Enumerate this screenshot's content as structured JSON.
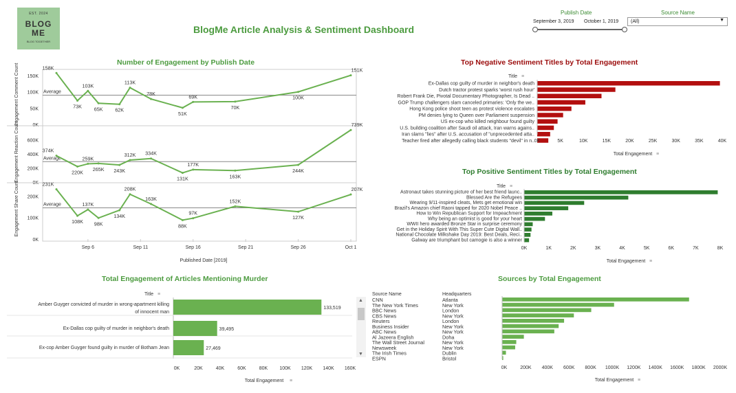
{
  "header": {
    "logo_top": "EST.   2024",
    "logo_name": "BLOG ME",
    "logo_tagline": "BLOG TOGETHER",
    "title": "BlogMe Article Analysis & Sentiment Dashboard"
  },
  "filters": {
    "publish_date_label": "Publish Date",
    "date_start": "September 3, 2019",
    "date_end": "October 1, 2019",
    "source_name_label": "Source Name",
    "source_value": "(All)"
  },
  "colors": {
    "green": "#6ab150",
    "darkgreen": "#2f7d2f",
    "red": "#b30f0f",
    "title_green": "#4c9b3f",
    "title_red": "#9b0c0c"
  },
  "chart_data": [
    {
      "type": "line",
      "title": "Number of Engagement by Publish Date",
      "xlabel": "Published Date [2019]",
      "x_ticks": [
        "Sep 6",
        "Sep 11",
        "Sep 16",
        "Sep 21",
        "Sep 26",
        "Oct 1"
      ],
      "reference_line_label": "Average",
      "panels": [
        {
          "ylabel": "Engagement Comment Count",
          "yticks": [
            "150K",
            "100K",
            "50K",
            "0K"
          ],
          "ylim": [
            0,
            165000
          ],
          "average": 90000,
          "points": [
            [
              "2019-09-03",
              158000
            ],
            [
              "2019-09-05",
              73000
            ],
            [
              "2019-09-06",
              103000
            ],
            [
              "2019-09-07",
              65000
            ],
            [
              "2019-09-09",
              62000
            ],
            [
              "2019-09-10",
              113000
            ],
            [
              "2019-09-12",
              78000
            ],
            [
              "2019-09-15",
              51000
            ],
            [
              "2019-09-16",
              69000
            ],
            [
              "2019-09-20",
              70000
            ],
            [
              "2019-09-26",
              100000
            ],
            [
              "2019-10-01",
              151000
            ]
          ],
          "labels": [
            "158K",
            "73K",
            "103K",
            "65K",
            "62K",
            "113K",
            "78K",
            "51K",
            "69K",
            "70K",
            "100K",
            "151K"
          ]
        },
        {
          "ylabel": "Engagement Reaction Count",
          "yticks": [
            "600K",
            "400K",
            "200K",
            "0K"
          ],
          "ylim": [
            0,
            780000
          ],
          "average": 290000,
          "points": [
            [
              "2019-09-03",
              374000
            ],
            [
              "2019-09-05",
              220000
            ],
            [
              "2019-09-06",
              259000
            ],
            [
              "2019-09-07",
              265000
            ],
            [
              "2019-09-09",
              243000
            ],
            [
              "2019-09-10",
              312000
            ],
            [
              "2019-09-12",
              334000
            ],
            [
              "2019-09-15",
              131000
            ],
            [
              "2019-09-16",
              177000
            ],
            [
              "2019-09-20",
              163000
            ],
            [
              "2019-09-26",
              244000
            ],
            [
              "2019-10-01",
              739000
            ]
          ],
          "labels": [
            "374K",
            "220K",
            "259K",
            "265K",
            "243K",
            "312K",
            "334K",
            "131K",
            "177K",
            "163K",
            "244K",
            "739K"
          ]
        },
        {
          "ylabel": "Engagement Share Count",
          "yticks": [
            "200K",
            "100K",
            "0K"
          ],
          "ylim": [
            0,
            255000
          ],
          "average": 145000,
          "points": [
            [
              "2019-09-03",
              231000
            ],
            [
              "2019-09-05",
              108000
            ],
            [
              "2019-09-06",
              137000
            ],
            [
              "2019-09-07",
              98000
            ],
            [
              "2019-09-09",
              134000
            ],
            [
              "2019-09-10",
              208000
            ],
            [
              "2019-09-12",
              163000
            ],
            [
              "2019-09-15",
              88000
            ],
            [
              "2019-09-16",
              97000
            ],
            [
              "2019-09-20",
              152000
            ],
            [
              "2019-09-26",
              127000
            ],
            [
              "2019-10-01",
              207000
            ]
          ],
          "labels": [
            "231K",
            "108K",
            "137K",
            "98K",
            "134K",
            "208K",
            "163K",
            "88K",
            "97K",
            "152K",
            "127K",
            "207K"
          ]
        }
      ]
    },
    {
      "type": "bar",
      "title": "Top Negative Sentiment Titles by Total Engagement",
      "category_header": "Title",
      "xlabel": "Total Engagement",
      "xlim": [
        0,
        40000
      ],
      "xticks": [
        "0K",
        "5K",
        "10K",
        "15K",
        "20K",
        "25K",
        "30K",
        "35K",
        "40K"
      ],
      "categories": [
        "Ex-Dallas cop guilty of murder in neighbor's death",
        "Dutch tractor protest sparks 'worst rush hour'",
        "Robert Frank Die, Pivotal Documentary Photographer, Is Dead ..",
        "GOP Trump challengers slam canceled primaries: 'Only the we..",
        "Hong Kong police shoot teen as protest violence escalates",
        "PM denies lying to Queen over Parliament suspension",
        "US ex-cop who killed neighbour found guilty",
        "U.S. building coalition after Saudi oil attack, Iran warns agains..",
        "Iran slams \"lies\" after U.S. accusation of \"unprecedented atta..",
        "Teacher fired after allegedly calling black students \"devil\" in n.."
      ],
      "values": [
        39495,
        16900,
        13900,
        10400,
        7400,
        5600,
        4400,
        3600,
        2800,
        2400
      ]
    },
    {
      "type": "bar",
      "title": "Top Positive Sentiment Titles by Total Engagement",
      "category_header": "Title",
      "xlabel": "Total Engagement",
      "xlim": [
        0,
        8000
      ],
      "xticks": [
        "0K",
        "1K",
        "2K",
        "3K",
        "4K",
        "5K",
        "6K",
        "7K",
        "8K"
      ],
      "categories": [
        "Astronaut takes stunning picture of her best friend launc..",
        "Blessed Are the Refugees",
        "Wearing 9/11-inspired cleats, Mets get emotional win",
        "Brazil's Amazon chief Raoni tapped for 2020 Nobel Peace ..",
        "How to Win Republican Support for Impeachment",
        "Why being an optimist is good for your heart",
        "WWII hero awarded Bronze Star in surprise ceremony",
        "Get in the Holiday Spirit With This Super Cute Digital Wall..",
        "National Chocolate Milkshake Day 2019: Best Deals, Reci..",
        "Galway are triumphant but camogie is also a winner"
      ],
      "values": [
        7900,
        4250,
        2450,
        1800,
        1150,
        850,
        350,
        300,
        260,
        200
      ]
    },
    {
      "type": "bar",
      "title": "Total Engagement of Articles Mentioning Murder",
      "category_header": "Title",
      "xlabel": "Total Engagement",
      "xlim": [
        0,
        160000
      ],
      "xticks": [
        "0K",
        "20K",
        "40K",
        "60K",
        "80K",
        "100K",
        "120K",
        "140K",
        "160K"
      ],
      "categories": [
        "Amber Guyger convicted of murder in wrong-apartment killing of innocent man",
        "Ex-Dallas cop guilty of murder in neighbor's death",
        "Ex-cop Amber Guyger found guilty in murder of Botham Jean"
      ],
      "values": [
        133519,
        39495,
        27469
      ],
      "value_labels": [
        "133,519",
        "39,495",
        "27,469"
      ]
    },
    {
      "type": "bar",
      "title": "Sources by Total Engagement",
      "category_header": "Source Name",
      "second_header": "Headquarters",
      "xlabel": "Total Engagement",
      "xlim": [
        0,
        2000000
      ],
      "xticks": [
        "0K",
        "200K",
        "400K",
        "600K",
        "800K",
        "1000K",
        "1200K",
        "1400K",
        "1600K",
        "1800K",
        "2000K"
      ],
      "categories": [
        "CNN",
        "The New York Times",
        "BBC News",
        "CBS News",
        "Reuters",
        "Business Insider",
        "ABC News",
        "Al Jazeera English",
        "The Wall Street Journal",
        "Newsweek",
        "The Irish Times",
        "ESPN"
      ],
      "headquarters": [
        "Atlanta",
        "New York",
        "London",
        "New York",
        "London",
        "New York",
        "New York",
        "Doha",
        "New York",
        "New York",
        "Dublin",
        "Bristol"
      ],
      "values": [
        1720000,
        1030000,
        820000,
        660000,
        570000,
        520000,
        480000,
        200000,
        130000,
        120000,
        35000,
        10000
      ]
    }
  ]
}
